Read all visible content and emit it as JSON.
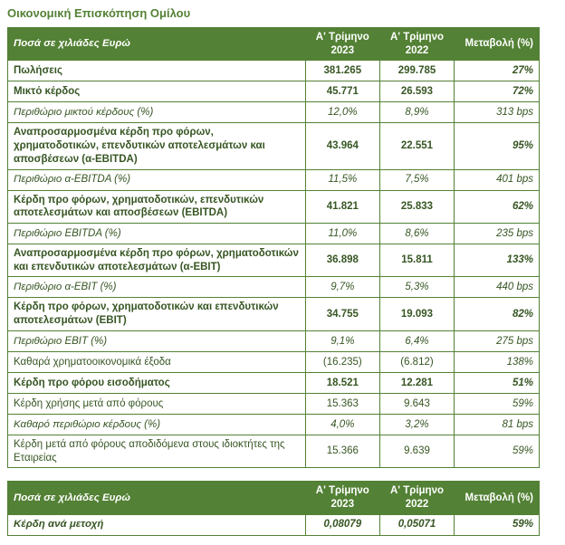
{
  "title": "Οικονομική Επισκόπηση Ομίλου",
  "colors": {
    "header_bg": "#538135",
    "header_text": "#FFFFFF",
    "border": "#538135",
    "body_text": "#375623",
    "title": "#538135",
    "page_bg": "#FFFFFF"
  },
  "main_table": {
    "headers": [
      "Ποσά σε χιλιάδες Ευρώ",
      "Α' Τρίμηνο 2023",
      "Α' Τρίμηνο 2022",
      "Μεταβολή (%)"
    ],
    "rows": [
      {
        "label": "Πωλήσεις",
        "q1_2023": "381.265",
        "q1_2022": "299.785",
        "change": "27%",
        "style": "bold"
      },
      {
        "label": "Μικτό κέρδος",
        "q1_2023": "45.771",
        "q1_2022": "26.593",
        "change": "72%",
        "style": "bold"
      },
      {
        "label": "Περιθώριο μικτού κέρδους (%)",
        "q1_2023": "12,0%",
        "q1_2022": "8,9%",
        "change": "313 bps",
        "style": "italic"
      },
      {
        "label": "Αναπροσαρμοσμένα κέρδη προ φόρων, χρηματοδοτικών, επενδυτικών αποτελεσμάτων και αποσβέσεων (α-EBITDA)",
        "q1_2023": "43.964",
        "q1_2022": "22.551",
        "change": "95%",
        "style": "bold"
      },
      {
        "label": "Περιθώριο α-EBITDA (%)",
        "q1_2023": "11,5%",
        "q1_2022": "7,5%",
        "change": "401 bps",
        "style": "italic"
      },
      {
        "label": "Κέρδη προ φόρων, χρηματοδοτικών, επενδυτικών αποτελεσμάτων και αποσβέσεων (EBITDA)",
        "q1_2023": "41.821",
        "q1_2022": "25.833",
        "change": "62%",
        "style": "bold"
      },
      {
        "label": "Περιθώριο EBITDA (%)",
        "q1_2023": "11,0%",
        "q1_2022": "8,6%",
        "change": "235 bps",
        "style": "italic"
      },
      {
        "label": "Αναπροσαρμοσμένα κέρδη προ φόρων, χρηματοδοτικών και επενδυτικών αποτελεσμάτων (α-EBIT)",
        "q1_2023": "36.898",
        "q1_2022": "15.811",
        "change": "133%",
        "style": "bold"
      },
      {
        "label": "Περιθώριο α-EBIT (%)",
        "q1_2023": "9,7%",
        "q1_2022": "5,3%",
        "change": "440 bps",
        "style": "italic"
      },
      {
        "label": "Κέρδη προ φόρων, χρηματοδοτικών και επενδυτικών αποτελεσμάτων (EBIT)",
        "q1_2023": "34.755",
        "q1_2022": "19.093",
        "change": "82%",
        "style": "bold"
      },
      {
        "label": "Περιθώριο EBIT (%)",
        "q1_2023": "9,1%",
        "q1_2022": "6,4%",
        "change": "275 bps",
        "style": "italic"
      },
      {
        "label": "Καθαρά χρηματοοικονομικά έξοδα",
        "q1_2023": "(16.235)",
        "q1_2022": "(6.812)",
        "change": "138%",
        "style": "regular"
      },
      {
        "label": "Κέρδη προ φόρου εισοδήματος",
        "q1_2023": "18.521",
        "q1_2022": "12.281",
        "change": "51%",
        "style": "bold"
      },
      {
        "label": "Κέρδη χρήσης μετά από φόρους",
        "q1_2023": "15.363",
        "q1_2022": "9.643",
        "change": "59%",
        "style": "regular"
      },
      {
        "label": "Καθαρό περιθώριο κέρδους (%)",
        "q1_2023": "4,0%",
        "q1_2022": "3,2%",
        "change": "81 bps",
        "style": "italic"
      },
      {
        "label": "Κέρδη μετά από φόρους αποδιδόμενα στους ιδιοκτήτες της Εταιρείας",
        "q1_2023": "15.366",
        "q1_2022": "9.639",
        "change": "59%",
        "style": "regular"
      }
    ]
  },
  "eps_table": {
    "headers": [
      "Ποσά σε χιλιάδες Ευρώ",
      "Α' Τρίμηνο 2023",
      "Α' Τρίμηνο 2022",
      "Μεταβολή (%)"
    ],
    "rows": [
      {
        "label": "Κέρδη ανά μετοχή",
        "q1_2023": "0,08079",
        "q1_2022": "0,05071",
        "change": "59%",
        "style": "bold-italic"
      }
    ]
  }
}
